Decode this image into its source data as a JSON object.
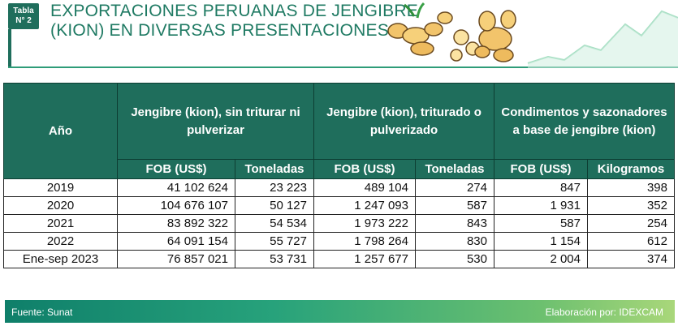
{
  "header": {
    "badge_line1": "Tabla",
    "badge_line2": "N° 2",
    "title_line1": "EXPORTACIONES PERUANAS DE JENGIBRE",
    "title_line2": "(KION) EN DIVERSAS PRESENTACIONES"
  },
  "table": {
    "year_header": "Año",
    "groups": [
      "Jengibre (kion), sin triturar ni pulverizar",
      "Jengibre (kion), triturado o pulverizado",
      "Condimentos y sazonadores a base de jengibre (kion)"
    ],
    "subheaders": [
      "FOB (US$)",
      "Toneladas",
      "FOB (US$)",
      "Toneladas",
      "FOB (US$)",
      "Kilogramos"
    ],
    "rows": [
      [
        "2019",
        "41 102 624",
        "23 223",
        "489 104",
        "274",
        "847",
        "398"
      ],
      [
        "2020",
        "104 676 107",
        "50 127",
        "1 247 093",
        "587",
        "1 931",
        "352"
      ],
      [
        "2021",
        "83 892 322",
        "54 534",
        "1 973 222",
        "843",
        "587",
        "254"
      ],
      [
        "2022",
        "64 091 154",
        "55 727",
        "1 798 264",
        "830",
        "1 154",
        "612"
      ],
      [
        "Ene-sep 2023",
        "76 857 021",
        "53 731",
        "1 257 677",
        "530",
        "2 004",
        "374"
      ]
    ]
  },
  "footer": {
    "source": "Fuente: Sunat",
    "elaboration": "Elaboración por: IDEXCAM"
  },
  "colors": {
    "accent": "#1f6e5c",
    "title": "#1f7a63"
  }
}
